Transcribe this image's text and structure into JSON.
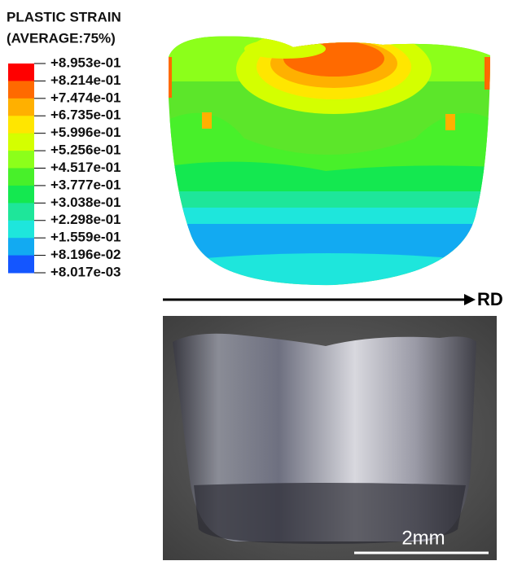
{
  "legend": {
    "title": [
      "PLASTIC STRAIN",
      "(AVERAGE:75%)"
    ],
    "labels": [
      "+8.953e-01",
      "+8.214e-01",
      "+7.474e-01",
      "+6.735e-01",
      "+5.996e-01",
      "+5.256e-01",
      "+4.517e-01",
      "+3.777e-01",
      "+3.038e-01",
      "+2.298e-01",
      "+1.559e-01",
      "+8.196e-02",
      "+8.017e-03"
    ],
    "colors": [
      "#ff0000",
      "#ff6a00",
      "#ffb000",
      "#ffe600",
      "#d4ff00",
      "#8cff1a",
      "#48f02a",
      "#14e850",
      "#1ee69a",
      "#1ee6dc",
      "#12aaf2",
      "#1456ff"
    ]
  },
  "axis_label": "RD",
  "scale_bar": "2mm"
}
